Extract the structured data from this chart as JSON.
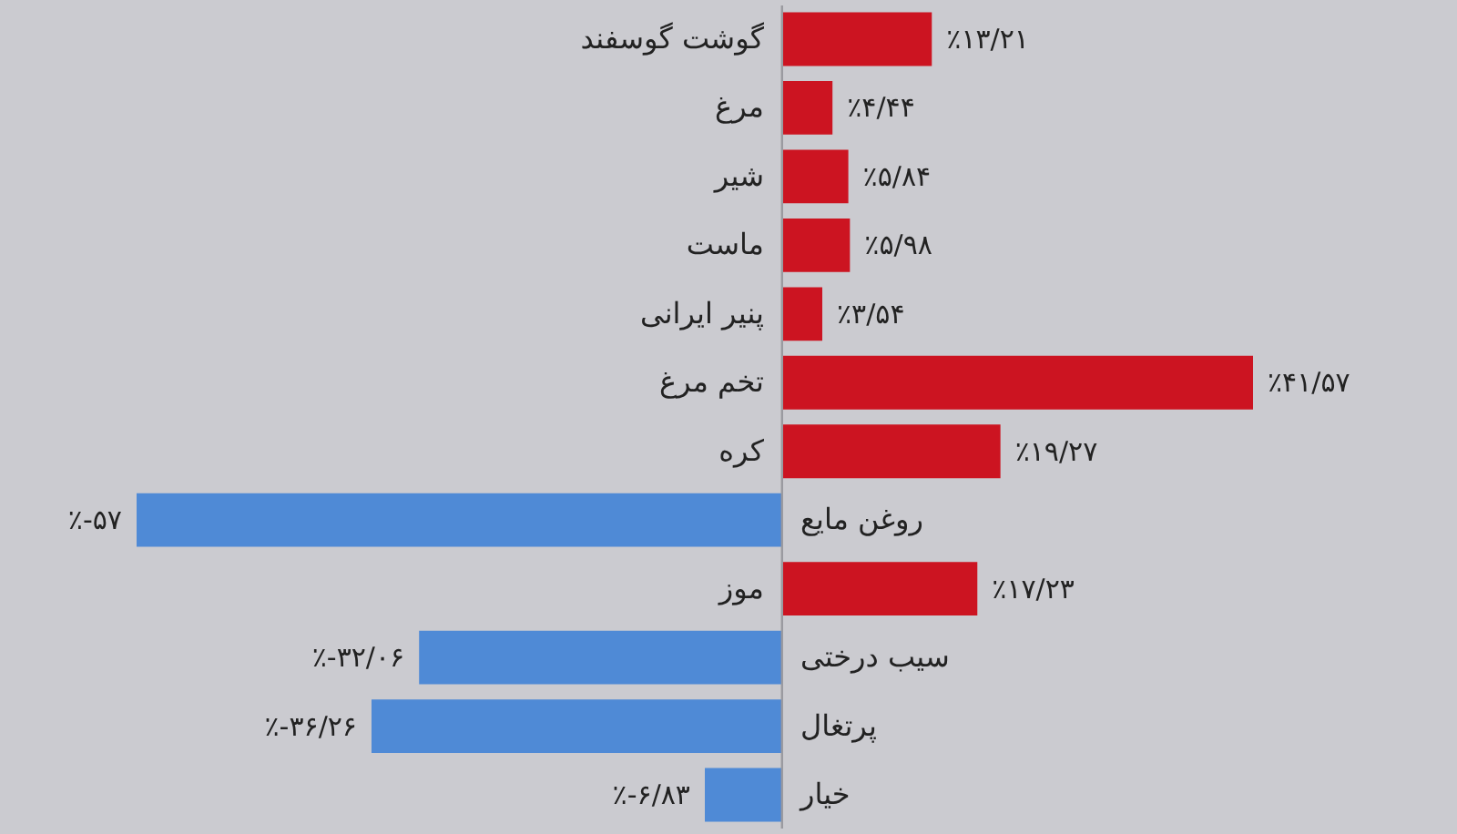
{
  "chart_data": {
    "type": "bar",
    "orientation": "horizontal",
    "categories": [
      "گوشت گوسفند",
      "مرغ",
      "شیر",
      "ماست",
      "پنیر ایرانی",
      "تخم مرغ",
      "کره",
      "روغن مایع",
      "موز",
      "سیب درختی",
      "پرتغال",
      "خیار"
    ],
    "values": [
      13.21,
      4.44,
      5.84,
      5.98,
      3.54,
      41.57,
      19.27,
      -57,
      17.23,
      -32.06,
      -36.26,
      -6.83
    ],
    "colors": [
      "#cc1421",
      "#cc1421",
      "#cc1421",
      "#cc1421",
      "#cc1421",
      "#cc1421",
      "#cc1421",
      "#4f8ad6",
      "#cc1421",
      "#4f8ad6",
      "#4f8ad6",
      "#4f8ad6"
    ],
    "value_labels": [
      "٪۱۳/۲۱",
      "٪۴/۴۴",
      "٪۵/۸۴",
      "٪۵/۹۸",
      "٪۳/۵۴",
      "٪۴۱/۵۷",
      "٪۱۹/۲۷",
      "٪-۵۷",
      "٪۱۷/۲۳",
      "٪-۳۲/۰۶",
      "٪-۳۶/۲۶",
      "٪-۶/۸۳"
    ]
  }
}
